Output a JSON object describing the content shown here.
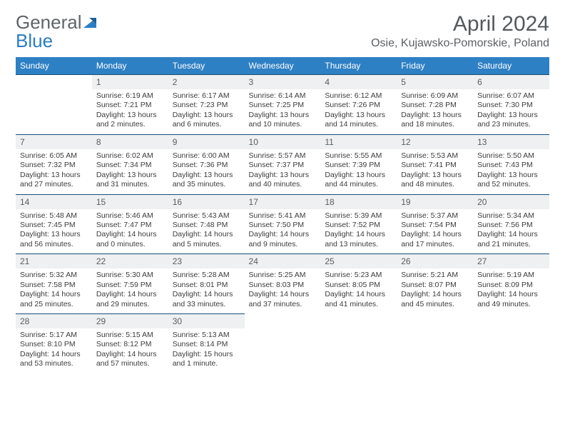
{
  "logo": {
    "text_a": "General",
    "text_b": "Blue"
  },
  "title": "April 2024",
  "location": "Osie, Kujawsko-Pomorskie, Poland",
  "colors": {
    "header_bg": "#2e80c4",
    "header_text": "#ffffff",
    "daynum_bg": "#eef0f1",
    "daynum_border": "#1b4f7a",
    "logo_gray": "#606569",
    "logo_blue": "#2b7ec2",
    "body_text": "#3c3c3c"
  },
  "weekdays": [
    "Sunday",
    "Monday",
    "Tuesday",
    "Wednesday",
    "Thursday",
    "Friday",
    "Saturday"
  ],
  "start_offset": 1,
  "days": [
    {
      "n": 1,
      "sunrise": "6:19 AM",
      "sunset": "7:21 PM",
      "daylight": "13 hours and 2 minutes."
    },
    {
      "n": 2,
      "sunrise": "6:17 AM",
      "sunset": "7:23 PM",
      "daylight": "13 hours and 6 minutes."
    },
    {
      "n": 3,
      "sunrise": "6:14 AM",
      "sunset": "7:25 PM",
      "daylight": "13 hours and 10 minutes."
    },
    {
      "n": 4,
      "sunrise": "6:12 AM",
      "sunset": "7:26 PM",
      "daylight": "13 hours and 14 minutes."
    },
    {
      "n": 5,
      "sunrise": "6:09 AM",
      "sunset": "7:28 PM",
      "daylight": "13 hours and 18 minutes."
    },
    {
      "n": 6,
      "sunrise": "6:07 AM",
      "sunset": "7:30 PM",
      "daylight": "13 hours and 23 minutes."
    },
    {
      "n": 7,
      "sunrise": "6:05 AM",
      "sunset": "7:32 PM",
      "daylight": "13 hours and 27 minutes."
    },
    {
      "n": 8,
      "sunrise": "6:02 AM",
      "sunset": "7:34 PM",
      "daylight": "13 hours and 31 minutes."
    },
    {
      "n": 9,
      "sunrise": "6:00 AM",
      "sunset": "7:36 PM",
      "daylight": "13 hours and 35 minutes."
    },
    {
      "n": 10,
      "sunrise": "5:57 AM",
      "sunset": "7:37 PM",
      "daylight": "13 hours and 40 minutes."
    },
    {
      "n": 11,
      "sunrise": "5:55 AM",
      "sunset": "7:39 PM",
      "daylight": "13 hours and 44 minutes."
    },
    {
      "n": 12,
      "sunrise": "5:53 AM",
      "sunset": "7:41 PM",
      "daylight": "13 hours and 48 minutes."
    },
    {
      "n": 13,
      "sunrise": "5:50 AM",
      "sunset": "7:43 PM",
      "daylight": "13 hours and 52 minutes."
    },
    {
      "n": 14,
      "sunrise": "5:48 AM",
      "sunset": "7:45 PM",
      "daylight": "13 hours and 56 minutes."
    },
    {
      "n": 15,
      "sunrise": "5:46 AM",
      "sunset": "7:47 PM",
      "daylight": "14 hours and 0 minutes."
    },
    {
      "n": 16,
      "sunrise": "5:43 AM",
      "sunset": "7:48 PM",
      "daylight": "14 hours and 5 minutes."
    },
    {
      "n": 17,
      "sunrise": "5:41 AM",
      "sunset": "7:50 PM",
      "daylight": "14 hours and 9 minutes."
    },
    {
      "n": 18,
      "sunrise": "5:39 AM",
      "sunset": "7:52 PM",
      "daylight": "14 hours and 13 minutes."
    },
    {
      "n": 19,
      "sunrise": "5:37 AM",
      "sunset": "7:54 PM",
      "daylight": "14 hours and 17 minutes."
    },
    {
      "n": 20,
      "sunrise": "5:34 AM",
      "sunset": "7:56 PM",
      "daylight": "14 hours and 21 minutes."
    },
    {
      "n": 21,
      "sunrise": "5:32 AM",
      "sunset": "7:58 PM",
      "daylight": "14 hours and 25 minutes."
    },
    {
      "n": 22,
      "sunrise": "5:30 AM",
      "sunset": "7:59 PM",
      "daylight": "14 hours and 29 minutes."
    },
    {
      "n": 23,
      "sunrise": "5:28 AM",
      "sunset": "8:01 PM",
      "daylight": "14 hours and 33 minutes."
    },
    {
      "n": 24,
      "sunrise": "5:25 AM",
      "sunset": "8:03 PM",
      "daylight": "14 hours and 37 minutes."
    },
    {
      "n": 25,
      "sunrise": "5:23 AM",
      "sunset": "8:05 PM",
      "daylight": "14 hours and 41 minutes."
    },
    {
      "n": 26,
      "sunrise": "5:21 AM",
      "sunset": "8:07 PM",
      "daylight": "14 hours and 45 minutes."
    },
    {
      "n": 27,
      "sunrise": "5:19 AM",
      "sunset": "8:09 PM",
      "daylight": "14 hours and 49 minutes."
    },
    {
      "n": 28,
      "sunrise": "5:17 AM",
      "sunset": "8:10 PM",
      "daylight": "14 hours and 53 minutes."
    },
    {
      "n": 29,
      "sunrise": "5:15 AM",
      "sunset": "8:12 PM",
      "daylight": "14 hours and 57 minutes."
    },
    {
      "n": 30,
      "sunrise": "5:13 AM",
      "sunset": "8:14 PM",
      "daylight": "15 hours and 1 minute."
    }
  ],
  "labels": {
    "sunrise": "Sunrise:",
    "sunset": "Sunset:",
    "daylight": "Daylight:"
  }
}
